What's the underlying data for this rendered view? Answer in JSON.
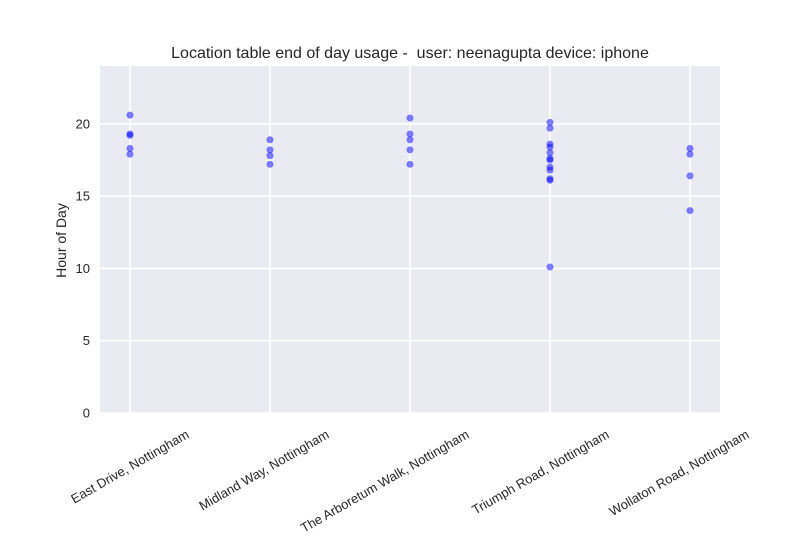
{
  "chart_data": {
    "type": "scatter",
    "title": "Location table end of day usage -  user: neenagupta device: iphone",
    "xlabel": "",
    "ylabel": "Hour of Day",
    "ylim": [
      0,
      24
    ],
    "y_ticks": [
      0,
      5,
      10,
      15,
      20
    ],
    "y_tick_labels": [
      "0",
      "5",
      "10",
      "15",
      "20"
    ],
    "categories": [
      "East Drive, Nottingham",
      "Midland Way, Nottingham",
      "The Arboretum Walk, Nottingham",
      "Triumph Road, Nottingham",
      "Wollaton Road, Nottingham"
    ],
    "series": [
      {
        "points": [
          {
            "x": "East Drive, Nottingham",
            "y": 20.6
          },
          {
            "x": "East Drive, Nottingham",
            "y": 19.3
          },
          {
            "x": "East Drive, Nottingham",
            "y": 19.2
          },
          {
            "x": "East Drive, Nottingham",
            "y": 18.3
          },
          {
            "x": "East Drive, Nottingham",
            "y": 17.9
          },
          {
            "x": "Midland Way, Nottingham",
            "y": 18.9
          },
          {
            "x": "Midland Way, Nottingham",
            "y": 18.2
          },
          {
            "x": "Midland Way, Nottingham",
            "y": 17.8
          },
          {
            "x": "Midland Way, Nottingham",
            "y": 17.2
          },
          {
            "x": "The Arboretum Walk, Nottingham",
            "y": 20.4
          },
          {
            "x": "The Arboretum Walk, Nottingham",
            "y": 19.3
          },
          {
            "x": "The Arboretum Walk, Nottingham",
            "y": 18.9
          },
          {
            "x": "The Arboretum Walk, Nottingham",
            "y": 18.2
          },
          {
            "x": "The Arboretum Walk, Nottingham",
            "y": 17.2
          },
          {
            "x": "Triumph Road, Nottingham",
            "y": 20.1
          },
          {
            "x": "Triumph Road, Nottingham",
            "y": 19.7
          },
          {
            "x": "Triumph Road, Nottingham",
            "y": 18.6
          },
          {
            "x": "Triumph Road, Nottingham",
            "y": 18.4
          },
          {
            "x": "Triumph Road, Nottingham",
            "y": 18.0
          },
          {
            "x": "Triumph Road, Nottingham",
            "y": 17.6
          },
          {
            "x": "Triumph Road, Nottingham",
            "y": 17.5
          },
          {
            "x": "Triumph Road, Nottingham",
            "y": 17.0
          },
          {
            "x": "Triumph Road, Nottingham",
            "y": 16.8
          },
          {
            "x": "Triumph Road, Nottingham",
            "y": 16.2
          },
          {
            "x": "Triumph Road, Nottingham",
            "y": 16.1
          },
          {
            "x": "Triumph Road, Nottingham",
            "y": 10.1
          },
          {
            "x": "Wollaton Road, Nottingham",
            "y": 18.3
          },
          {
            "x": "Wollaton Road, Nottingham",
            "y": 17.9
          },
          {
            "x": "Wollaton Road, Nottingham",
            "y": 16.4
          },
          {
            "x": "Wollaton Road, Nottingham",
            "y": 14.0
          }
        ]
      }
    ],
    "grid": true,
    "legend": "none",
    "colors": {
      "point": "#0000ff",
      "plot_background": "#eaeaf2",
      "grid": "#ffffff",
      "text": "#262626"
    }
  }
}
